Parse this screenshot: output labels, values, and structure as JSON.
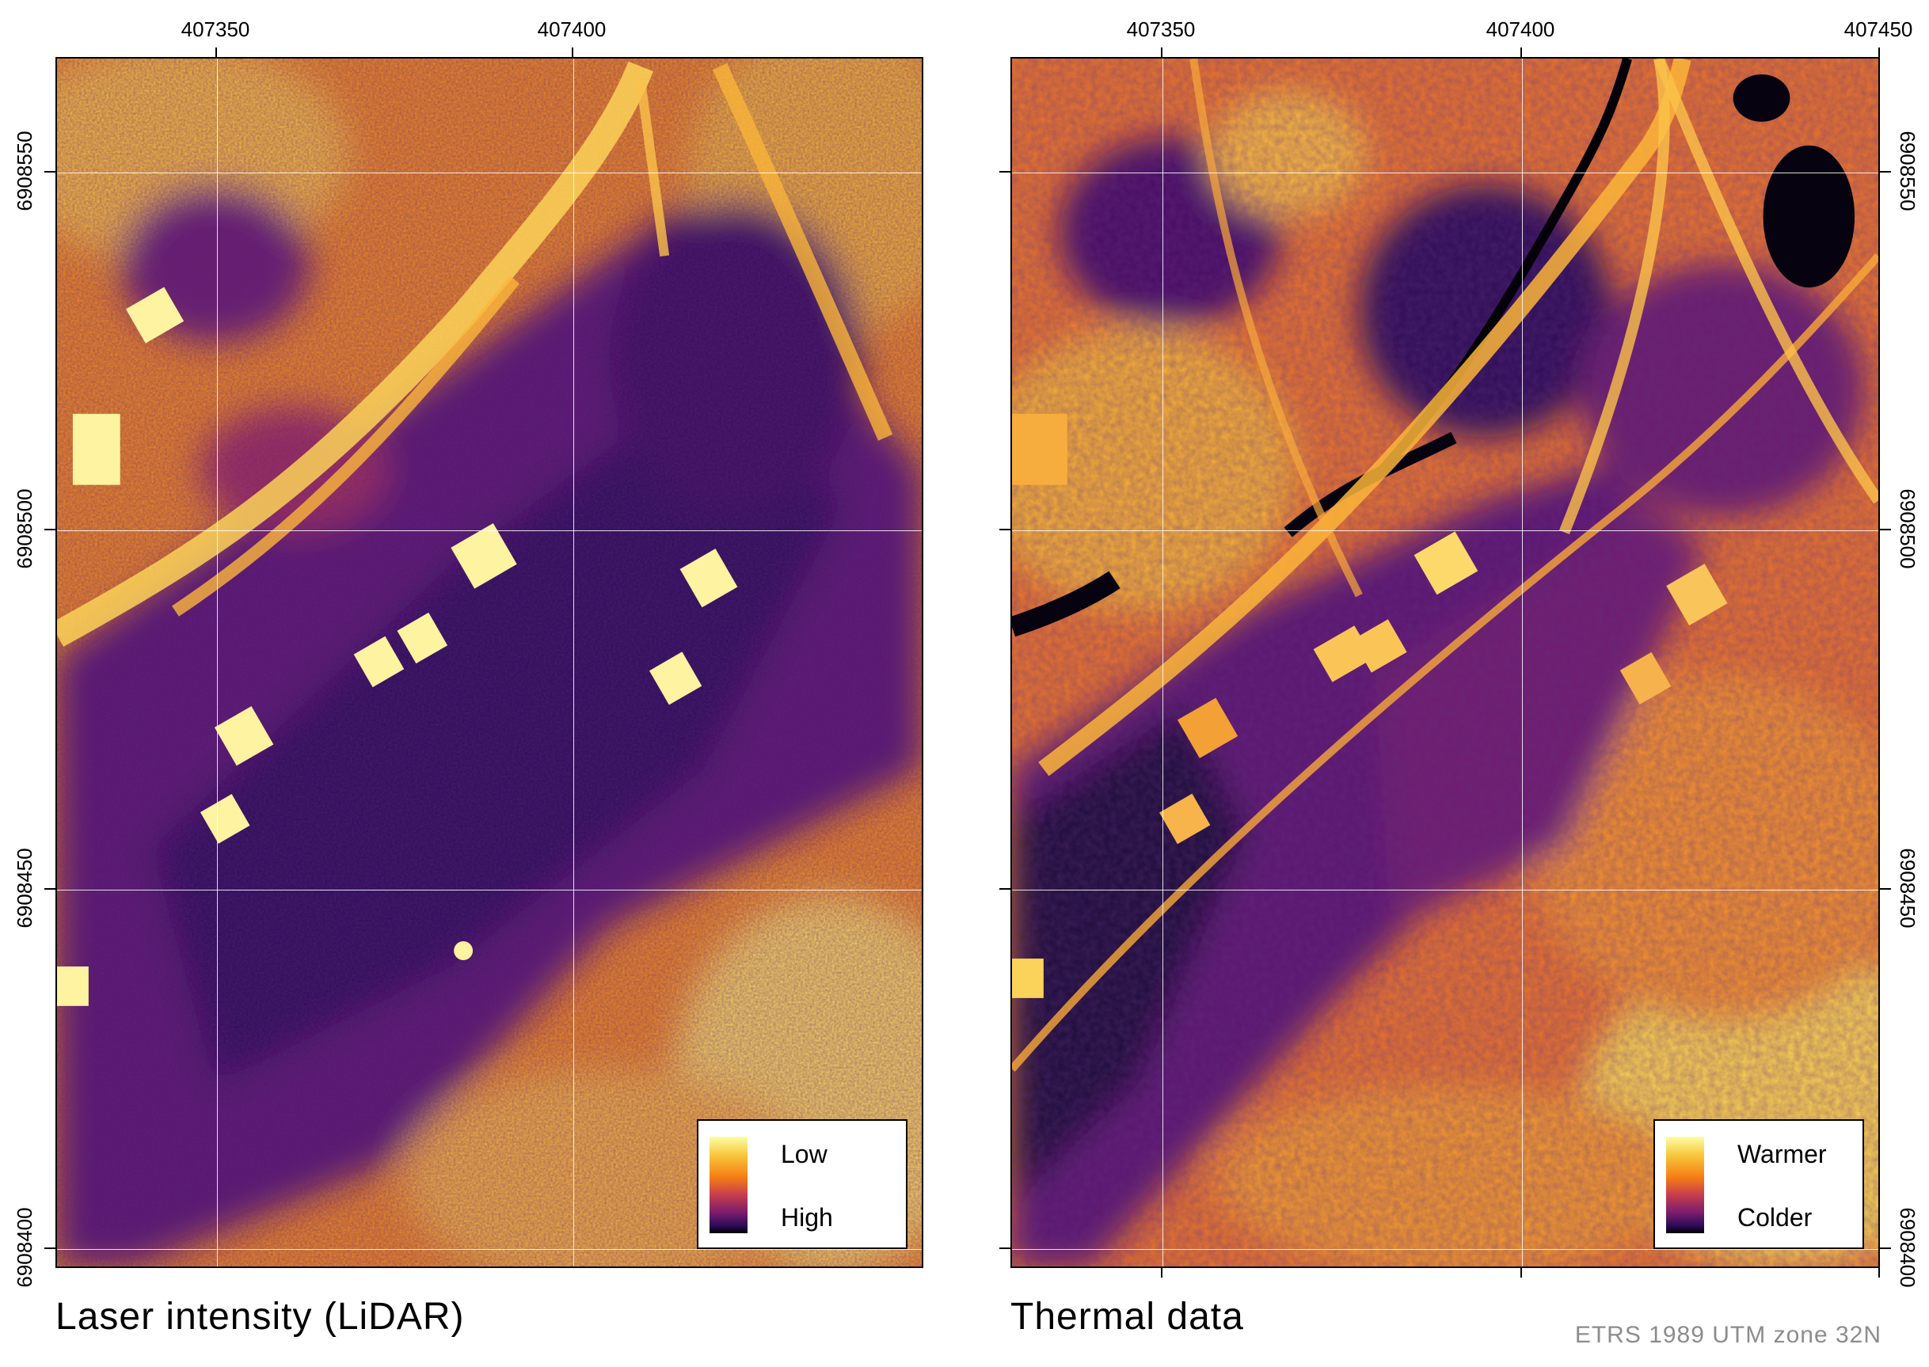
{
  "panels": [
    {
      "title": "Laser intensity (LiDAR)",
      "x_labels": [
        "407350",
        "407400"
      ],
      "y_labels": [
        "6908550",
        "6908500",
        "6908450",
        "6908400"
      ],
      "legend": {
        "top_label": "Low",
        "bottom_label": "High",
        "ramp": "inferno"
      }
    },
    {
      "title": "Thermal data",
      "x_labels": [
        "407350",
        "407400",
        "407450"
      ],
      "y_labels": [
        "6908550",
        "6908500",
        "6908450",
        "6908400"
      ],
      "legend": {
        "top_label": "Warmer",
        "bottom_label": "Colder",
        "ramp": "inferno"
      }
    }
  ],
  "crs": "ETRS 1989 UTM zone 32N",
  "colors": {
    "ramp_light": "#fcffa4",
    "ramp_yellow": "#f8c43a",
    "ramp_orange": "#f57d15",
    "ramp_red": "#c73e4c",
    "ramp_purple": "#7e1e6c",
    "ramp_dark": "#2d0b59",
    "ramp_black": "#000004",
    "gridline": "#ffffff"
  }
}
